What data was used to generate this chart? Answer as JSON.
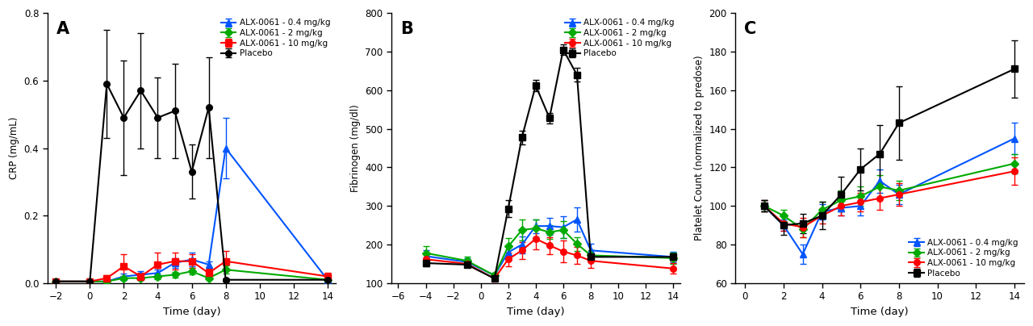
{
  "A": {
    "title": "A",
    "xlabel": "Time (day)",
    "ylabel": "CRP (mg/mL)",
    "xlim": [
      -2.5,
      14.5
    ],
    "ylim": [
      0,
      0.8
    ],
    "yticks": [
      0.0,
      0.2,
      0.4,
      0.6,
      0.8
    ],
    "xticks": [
      -2,
      0,
      2,
      4,
      6,
      8,
      10,
      12,
      14
    ],
    "series": {
      "blue": {
        "label": "ALX-0061 - 0.4 mg/kg",
        "color": "#0055FF",
        "marker": "^",
        "x": [
          -2,
          0,
          1,
          2,
          3,
          4,
          5,
          6,
          7,
          8,
          14
        ],
        "y": [
          0.005,
          0.005,
          0.005,
          0.02,
          0.025,
          0.03,
          0.06,
          0.07,
          0.055,
          0.4,
          0.01
        ],
        "yerr": [
          0.003,
          0.003,
          0.003,
          0.008,
          0.01,
          0.01,
          0.015,
          0.02,
          0.01,
          0.09,
          0.005
        ]
      },
      "green": {
        "label": "ALX-0061 - 2 mg/kg",
        "color": "#00AA00",
        "marker": "D",
        "x": [
          -2,
          0,
          1,
          2,
          3,
          4,
          5,
          6,
          7,
          8,
          14
        ],
        "y": [
          0.005,
          0.005,
          0.005,
          0.015,
          0.015,
          0.02,
          0.025,
          0.035,
          0.015,
          0.04,
          0.01
        ],
        "yerr": [
          0.003,
          0.003,
          0.003,
          0.006,
          0.006,
          0.008,
          0.008,
          0.01,
          0.006,
          0.012,
          0.005
        ]
      },
      "red": {
        "label": "ALX-0061 - 10 mg/kg",
        "color": "#FF0000",
        "marker": "s",
        "x": [
          -2,
          0,
          1,
          2,
          3,
          4,
          5,
          6,
          7,
          8,
          14
        ],
        "y": [
          0.005,
          0.005,
          0.015,
          0.05,
          0.02,
          0.055,
          0.065,
          0.065,
          0.03,
          0.065,
          0.02
        ],
        "yerr": [
          0.003,
          0.003,
          0.008,
          0.035,
          0.01,
          0.035,
          0.025,
          0.02,
          0.012,
          0.03,
          0.01
        ]
      },
      "black": {
        "label": "Placebo",
        "color": "#000000",
        "marker": "o",
        "x": [
          -2,
          0,
          1,
          2,
          3,
          4,
          5,
          6,
          7,
          8,
          14
        ],
        "y": [
          0.005,
          0.005,
          0.59,
          0.49,
          0.57,
          0.49,
          0.51,
          0.33,
          0.52,
          0.01,
          0.01
        ],
        "yerr": [
          0.003,
          0.003,
          0.16,
          0.17,
          0.17,
          0.12,
          0.14,
          0.08,
          0.15,
          0.005,
          0.005
        ]
      }
    }
  },
  "B": {
    "title": "B",
    "xlabel": "Time (day)",
    "ylabel": "Fibrinogen (mg/dl)",
    "xlim": [
      -6.5,
      14.5
    ],
    "ylim": [
      100,
      800
    ],
    "yticks": [
      100,
      200,
      300,
      400,
      500,
      600,
      700,
      800
    ],
    "xticks": [
      -6,
      -4,
      -2,
      0,
      2,
      4,
      6,
      8,
      10,
      12,
      14
    ],
    "series": {
      "blue": {
        "label": "ALX-0061 - 0.4 mg/kg",
        "color": "#0055FF",
        "marker": "^",
        "x": [
          -4,
          -1,
          1,
          2,
          3,
          4,
          5,
          6,
          7,
          8,
          14
        ],
        "y": [
          170,
          155,
          120,
          180,
          200,
          248,
          248,
          245,
          265,
          185,
          168
        ],
        "yerr": [
          15,
          10,
          8,
          18,
          22,
          18,
          22,
          28,
          32,
          18,
          14
        ]
      },
      "green": {
        "label": "ALX-0061 - 2 mg/kg",
        "color": "#00AA00",
        "marker": "D",
        "x": [
          -4,
          -1,
          1,
          2,
          3,
          4,
          5,
          6,
          7,
          8,
          14
        ],
        "y": [
          178,
          158,
          120,
          195,
          238,
          242,
          232,
          238,
          202,
          172,
          165
        ],
        "yerr": [
          18,
          10,
          8,
          22,
          28,
          22,
          18,
          22,
          18,
          14,
          14
        ]
      },
      "red": {
        "label": "ALX-0061 - 10 mg/kg",
        "color": "#FF0000",
        "marker": "o",
        "x": [
          -4,
          -1,
          1,
          2,
          3,
          4,
          5,
          6,
          7,
          8,
          14
        ],
        "y": [
          162,
          150,
          112,
          162,
          185,
          215,
          198,
          182,
          172,
          158,
          138
        ],
        "yerr": [
          14,
          9,
          8,
          18,
          22,
          28,
          22,
          28,
          22,
          18,
          14
        ]
      },
      "black": {
        "label": "Placebo",
        "color": "#000000",
        "marker": "s",
        "x": [
          -4,
          -1,
          1,
          2,
          3,
          4,
          5,
          6,
          7,
          8,
          14
        ],
        "y": [
          152,
          148,
          112,
          293,
          478,
          612,
          528,
          705,
          640,
          168,
          168
        ],
        "yerr": [
          9,
          7,
          5,
          22,
          18,
          14,
          14,
          14,
          18,
          9,
          9
        ]
      }
    }
  },
  "C": {
    "title": "C",
    "xlabel": "Time (day)",
    "ylabel": "Platelet Count (normalized to predose)",
    "xlim": [
      -0.5,
      14.5
    ],
    "ylim": [
      60,
      200
    ],
    "yticks": [
      60,
      80,
      100,
      120,
      140,
      160,
      180,
      200
    ],
    "xticks": [
      0,
      2,
      4,
      6,
      8,
      10,
      12,
      14
    ],
    "series": {
      "blue": {
        "label": "ALX-0061 - 0.4 mg/kg",
        "color": "#0055FF",
        "marker": "^",
        "x": [
          1,
          2,
          3,
          4,
          5,
          6,
          7,
          8,
          14
        ],
        "y": [
          100,
          90,
          75,
          97,
          99,
          100,
          113,
          106,
          135
        ],
        "yerr": [
          3,
          3,
          5,
          4,
          4,
          5,
          6,
          5,
          8
        ]
      },
      "green": {
        "label": "ALX-0061 - 2 mg/kg",
        "color": "#00AA00",
        "marker": "D",
        "x": [
          1,
          2,
          3,
          4,
          5,
          6,
          7,
          8,
          14
        ],
        "y": [
          100,
          95,
          88,
          98,
          103,
          105,
          110,
          108,
          122
        ],
        "yerr": [
          3,
          3,
          4,
          4,
          5,
          5,
          6,
          5,
          5
        ]
      },
      "red": {
        "label": "ALX-0061 - 10 mg/kg",
        "color": "#FF0000",
        "marker": "o",
        "x": [
          1,
          2,
          3,
          4,
          5,
          6,
          7,
          8,
          14
        ],
        "y": [
          100,
          91,
          89,
          95,
          100,
          102,
          104,
          106,
          118
        ],
        "yerr": [
          3,
          4,
          5,
          4,
          5,
          5,
          6,
          6,
          7
        ]
      },
      "black": {
        "label": "Placebo",
        "color": "#000000",
        "marker": "s",
        "x": [
          1,
          2,
          3,
          4,
          5,
          6,
          7,
          8,
          14
        ],
        "y": [
          100,
          90,
          91,
          95,
          106,
          119,
          127,
          143,
          171
        ],
        "yerr": [
          3,
          5,
          5,
          7,
          9,
          11,
          15,
          19,
          15
        ]
      }
    }
  }
}
